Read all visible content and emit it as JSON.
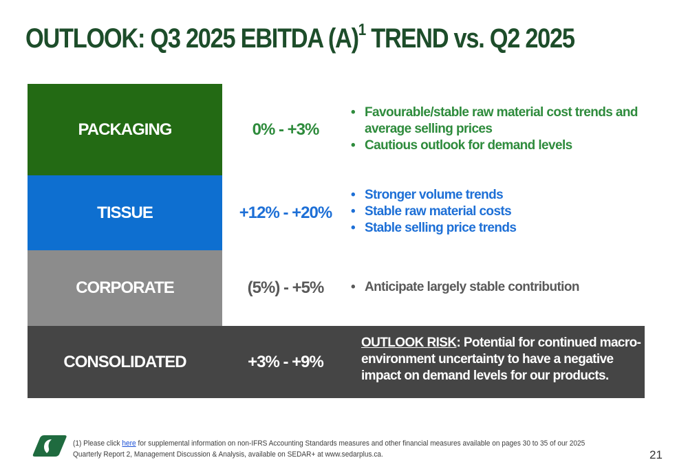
{
  "title": {
    "text": "OUTLOOK: Q3 2025 EBITDA (A)",
    "superscript": "1",
    "text_after": " TREND vs. Q2 2025",
    "color": "#1d4d2a"
  },
  "segments": [
    {
      "label": "PACKAGING",
      "range": "0% - +3%",
      "color": "#236a14",
      "text_color": "#2e8b3c",
      "bullets": [
        "Favourable/stable raw material cost trends and average selling prices",
        "Cautious outlook for demand levels"
      ]
    },
    {
      "label": "TISSUE",
      "range": "+12% - +20%",
      "color": "#0e6fd0",
      "text_color": "#1d6fd6",
      "bullets": [
        "Stronger volume trends",
        "Stable raw material costs",
        "Stable selling price trends"
      ]
    },
    {
      "label": "CORPORATE",
      "range": "(5%) - +5%",
      "color": "#8c8c8c",
      "text_color": "#595959",
      "bullets": [
        "Anticipate largely stable contribution"
      ]
    }
  ],
  "consolidated": {
    "label": "CONSOLIDATED",
    "range": "+3% - +9%",
    "color": "#454545",
    "risk_label": "OUTLOOK RISK",
    "risk_separator": ":",
    "risk_text": " Potential for continued macro-environment uncertainty to have a negative impact on demand levels for our products."
  },
  "footer": {
    "logo_icon": "company-logo-icon",
    "note_prefix": "(1) Please click ",
    "link_text": "here",
    "note_suffix": " for supplemental information on non-IFRS Accounting Standards measures and other financial measures available on pages 30 to 35 of our 2025 Quarterly Report 2, Management Discussion & Analysis, available on SEDAR+ at www.sedarplus.ca.",
    "page_number": "21"
  }
}
